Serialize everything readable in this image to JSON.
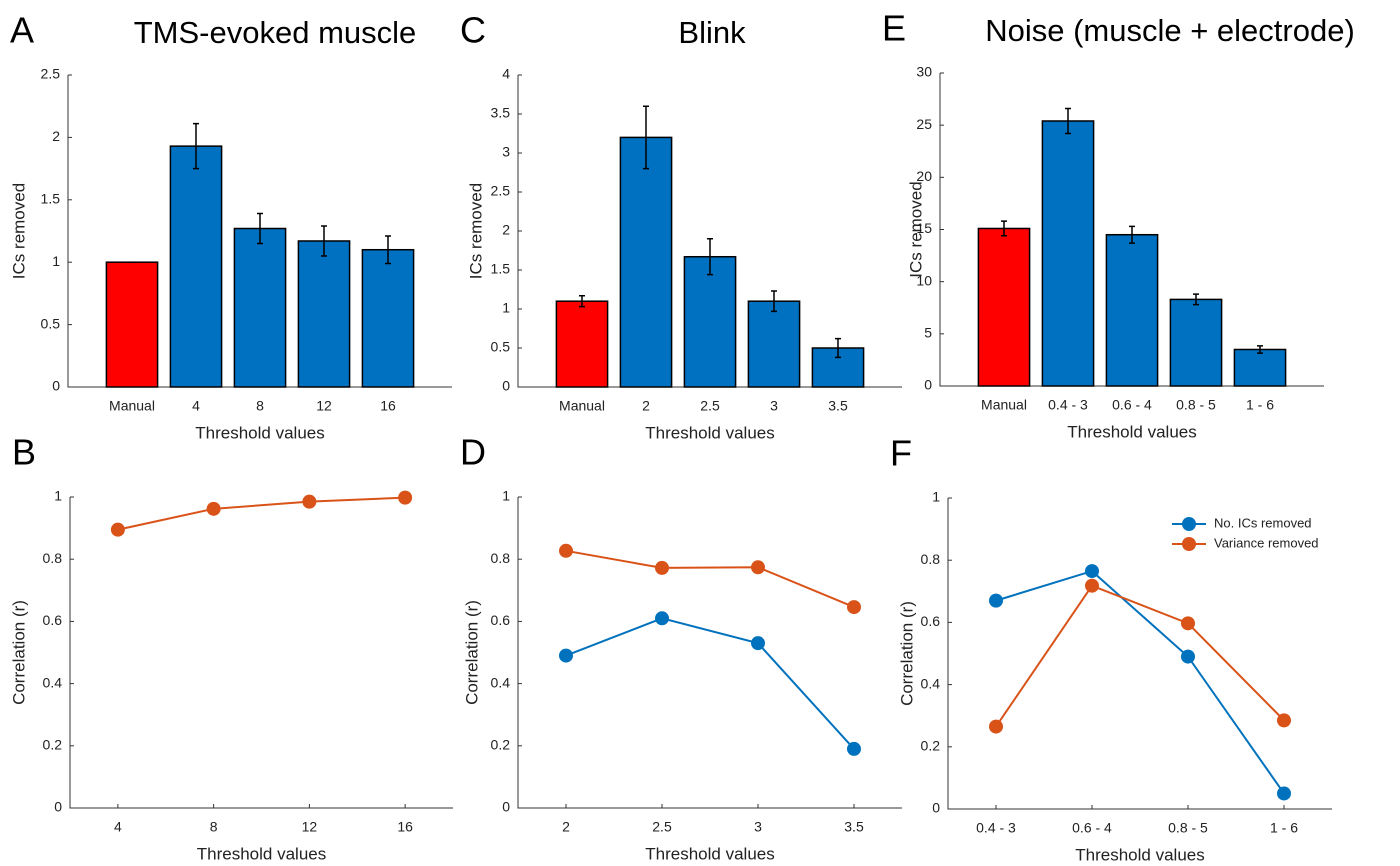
{
  "chart_data": [
    {
      "type": "bar",
      "panel": "A",
      "title": "TMS-evoked muscle",
      "xlabel": "Threshold values",
      "ylabel": "ICs removed",
      "categories": [
        "Manual",
        "4",
        "8",
        "12",
        "16"
      ],
      "values": [
        1,
        1.93,
        1.27,
        1.17,
        1.1
      ],
      "errors": [
        0,
        0.18,
        0.12,
        0.12,
        0.11
      ],
      "colors": [
        "#ff0000",
        "#0070c0",
        "#0070c0",
        "#0070c0",
        "#0070c0"
      ],
      "ylim": [
        0,
        2.5
      ],
      "yticks": [
        0,
        0.5,
        1,
        1.5,
        2,
        2.5
      ]
    },
    {
      "type": "bar",
      "panel": "C",
      "title": "Blink",
      "xlabel": "Threshold values",
      "ylabel": "ICs removed",
      "categories": [
        "Manual",
        "2",
        "2.5",
        "3",
        "3.5"
      ],
      "values": [
        1.1,
        3.2,
        1.67,
        1.1,
        0.5
      ],
      "errors": [
        0.07,
        0.4,
        0.23,
        0.13,
        0.12
      ],
      "colors": [
        "#ff0000",
        "#0070c0",
        "#0070c0",
        "#0070c0",
        "#0070c0"
      ],
      "ylim": [
        0,
        4
      ],
      "yticks": [
        0,
        0.5,
        1,
        1.5,
        2,
        2.5,
        3,
        3.5,
        4
      ]
    },
    {
      "type": "bar",
      "panel": "E",
      "title": "Noise (muscle + electrode)",
      "xlabel": "Threshold values",
      "ylabel": "ICs removed",
      "categories": [
        "Manual",
        "0.4 - 3",
        "0.6 - 4",
        "0.8 - 5",
        "1 - 6"
      ],
      "values": [
        15.1,
        25.4,
        14.5,
        8.3,
        3.5
      ],
      "errors": [
        0.7,
        1.2,
        0.8,
        0.5,
        0.35
      ],
      "colors": [
        "#ff0000",
        "#0070c0",
        "#0070c0",
        "#0070c0",
        "#0070c0"
      ],
      "ylim": [
        0,
        30
      ],
      "yticks": [
        0,
        5,
        10,
        15,
        20,
        25,
        30
      ]
    },
    {
      "type": "line",
      "panel": "B",
      "xlabel": "Threshold values",
      "ylabel": "Correlation (r)",
      "categories": [
        "4",
        "8",
        "12",
        "16"
      ],
      "series": [
        {
          "color": "#d95319",
          "values": [
            0.895,
            0.962,
            0.985,
            0.998
          ]
        }
      ],
      "ylim": [
        0,
        1
      ],
      "yticks": [
        0,
        0.2,
        0.4,
        0.6,
        0.8,
        1
      ]
    },
    {
      "type": "line",
      "panel": "D",
      "xlabel": "Threshold values",
      "ylabel": "Correlation (r)",
      "categories": [
        "2",
        "2.5",
        "3",
        "3.5"
      ],
      "series": [
        {
          "color": "#0072bd",
          "values": [
            0.49,
            0.61,
            0.53,
            0.19
          ]
        },
        {
          "color": "#d95319",
          "values": [
            0.827,
            0.772,
            0.774,
            0.646
          ]
        }
      ],
      "ylim": [
        0,
        1
      ],
      "yticks": [
        0,
        0.2,
        0.4,
        0.6,
        0.8,
        1
      ]
    },
    {
      "type": "line",
      "panel": "F",
      "xlabel": "Threshold values",
      "ylabel": "Correlation (r)",
      "categories": [
        "0.4 - 3",
        "0.6 - 4",
        "0.8 - 5",
        "1 - 6"
      ],
      "series": [
        {
          "name": "No. ICs removed",
          "color": "#0072bd",
          "values": [
            0.67,
            0.765,
            0.49,
            0.05
          ]
        },
        {
          "name": "Variance removed",
          "color": "#d95319",
          "values": [
            0.265,
            0.718,
            0.597,
            0.285
          ]
        }
      ],
      "legend": "upper right",
      "ylim": [
        0,
        1
      ],
      "yticks": [
        0,
        0.2,
        0.4,
        0.6,
        0.8,
        1
      ]
    }
  ]
}
